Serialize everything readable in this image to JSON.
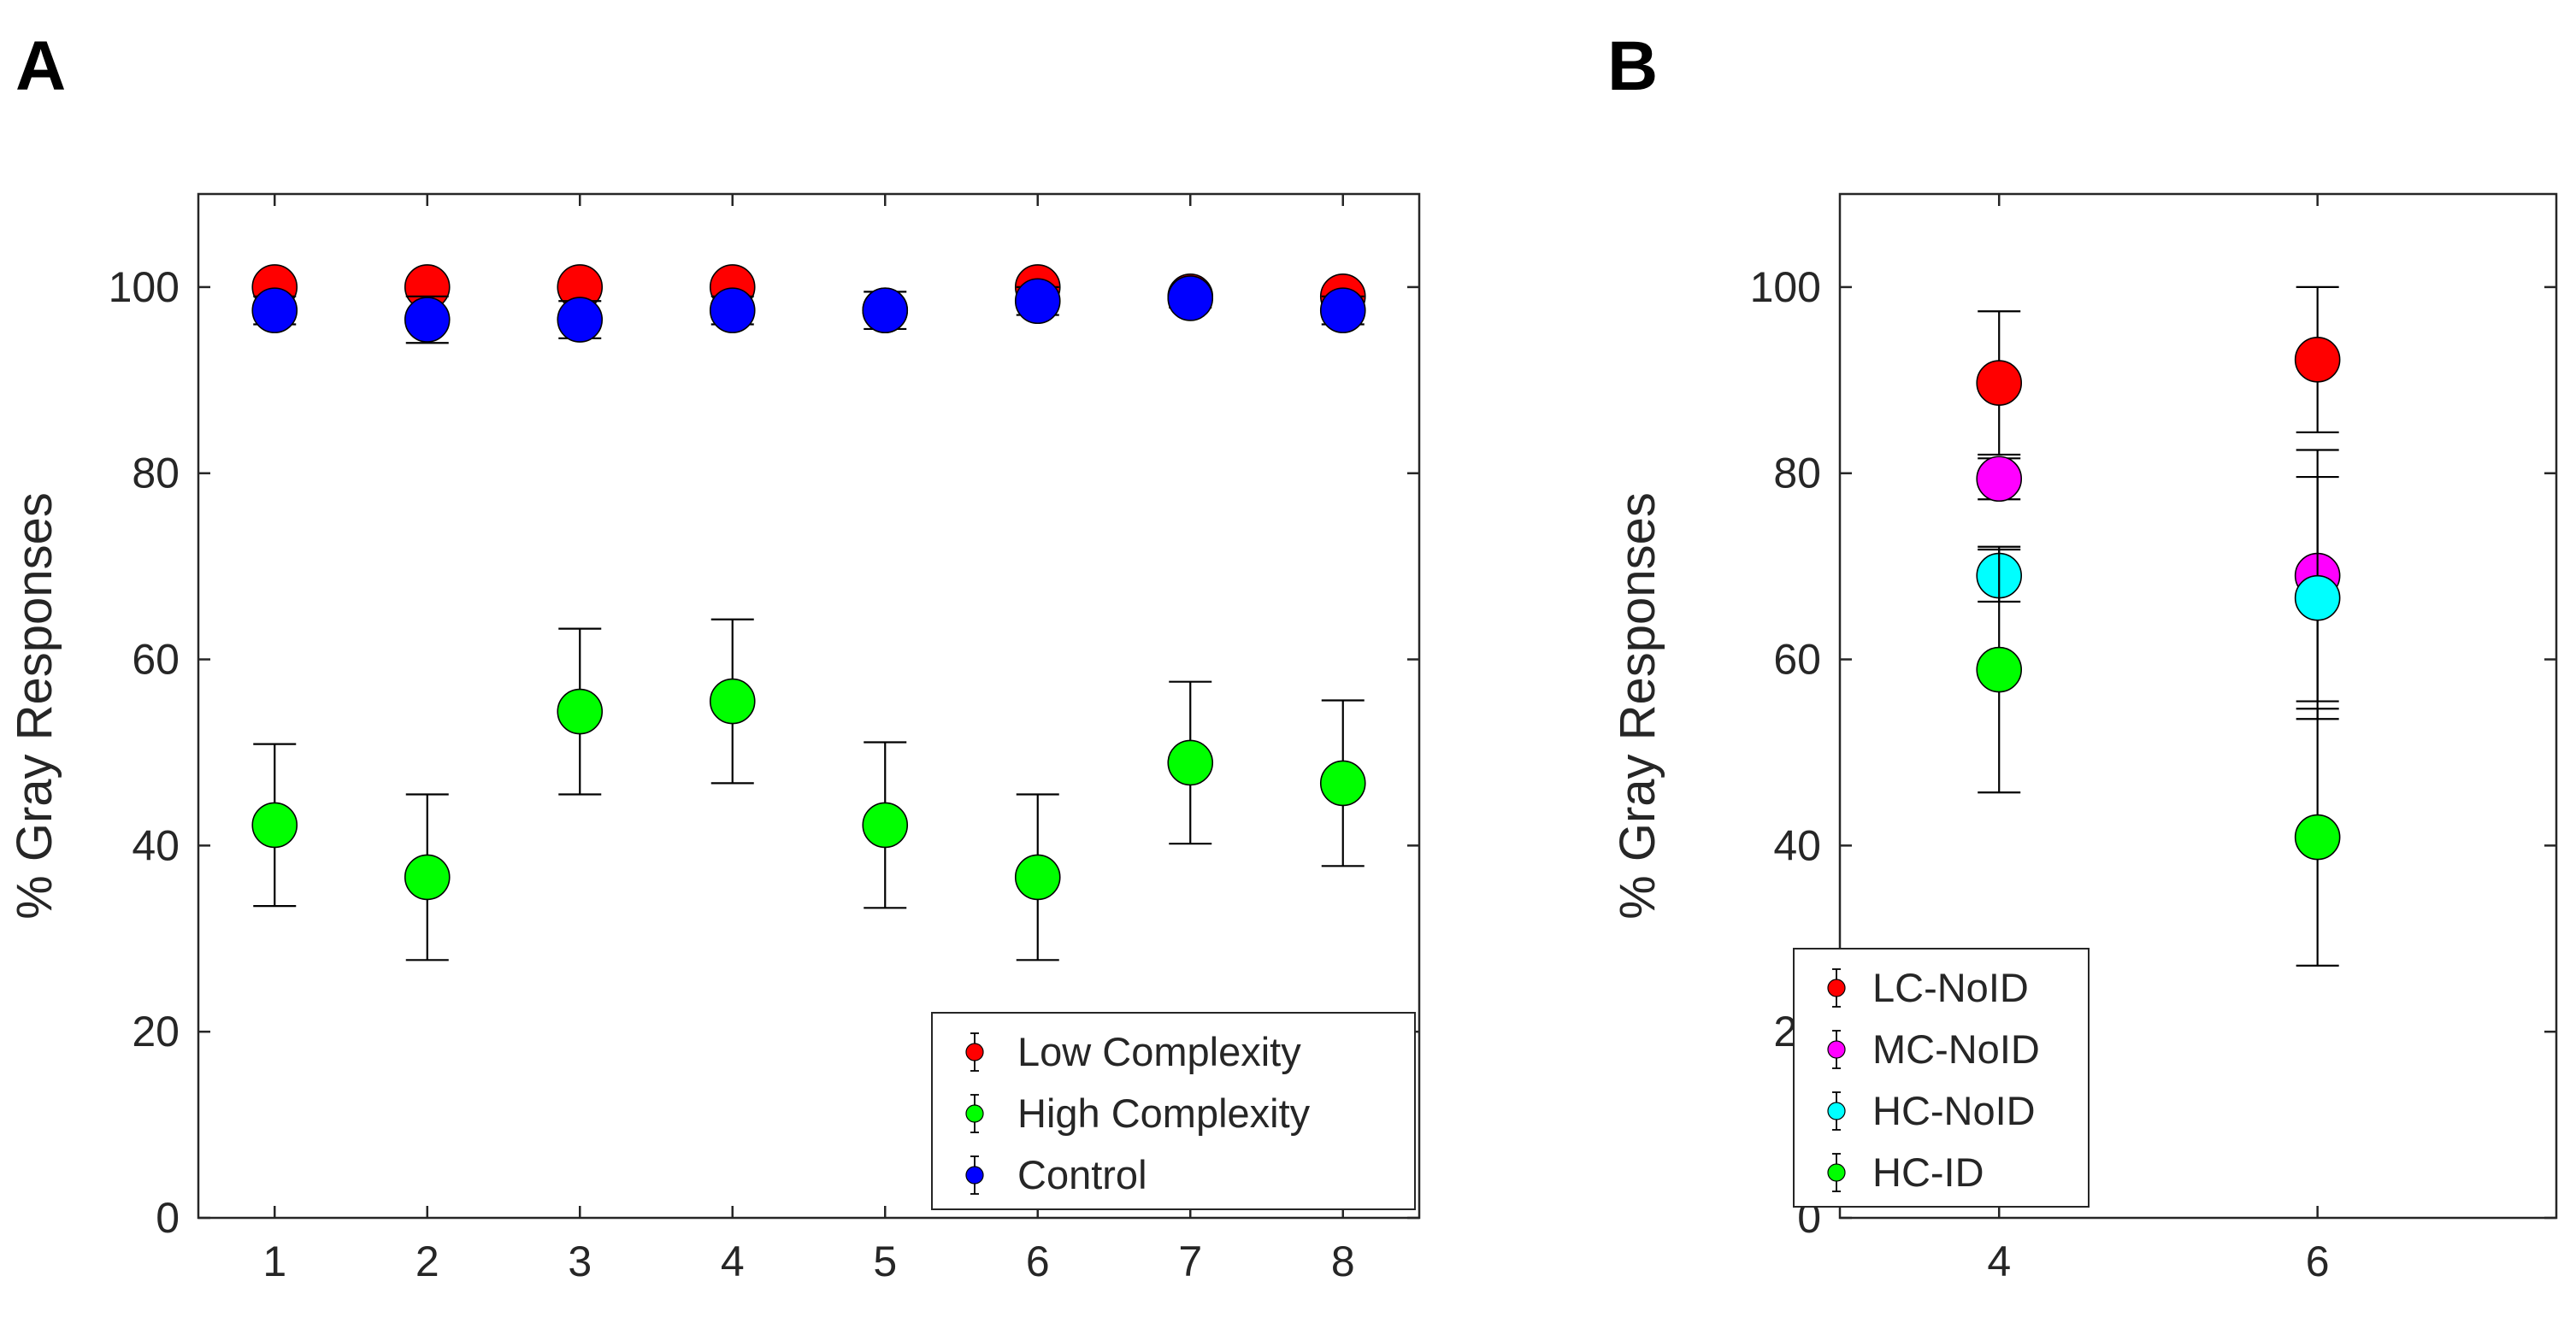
{
  "chart_data": [
    {
      "panel_label": "A",
      "type": "scatter",
      "title": "",
      "xlabel": "",
      "ylabel": "% Gray Responses",
      "xlim": [
        0.5,
        8.5
      ],
      "ylim": [
        0,
        110
      ],
      "x_ticks": [
        1,
        2,
        3,
        4,
        5,
        6,
        7,
        8
      ],
      "y_ticks": [
        0,
        20,
        40,
        60,
        80,
        100
      ],
      "grid": false,
      "legend_position": "bottom-right",
      "series": [
        {
          "name": "Low Complexity",
          "color": "#ff0000",
          "x": [
            1,
            2,
            3,
            4,
            5,
            6,
            7,
            8
          ],
          "y": [
            100,
            100,
            100,
            100,
            97.5,
            100,
            99,
            99
          ],
          "err": [
            0,
            0,
            0,
            0,
            0,
            0,
            0,
            0
          ]
        },
        {
          "name": "High Complexity",
          "color": "#00ff00",
          "x": [
            1,
            2,
            3,
            4,
            5,
            6,
            7,
            8
          ],
          "y": [
            42.2,
            36.6,
            54.4,
            55.5,
            42.2,
            36.6,
            48.9,
            46.7
          ],
          "err": [
            8.7,
            8.9,
            8.9,
            8.8,
            8.9,
            8.9,
            8.7,
            8.9
          ]
        },
        {
          "name": "Control",
          "color": "#0000ff",
          "x": [
            1,
            2,
            3,
            4,
            5,
            6,
            7,
            8
          ],
          "y": [
            97.5,
            96.5,
            96.5,
            97.5,
            97.5,
            98.5,
            98.8,
            97.5
          ],
          "err": [
            1.5,
            2.5,
            2.0,
            1.5,
            2.0,
            1.5,
            1.0,
            1.5
          ]
        }
      ]
    },
    {
      "panel_label": "B",
      "type": "scatter",
      "title": "",
      "xlabel": "",
      "ylabel": "% Gray Responses",
      "xlim": [
        3,
        7.5
      ],
      "ylim": [
        0,
        110
      ],
      "x_ticks": [
        4,
        6
      ],
      "y_ticks": [
        0,
        20,
        40,
        60,
        80,
        100
      ],
      "grid": false,
      "legend_position": "bottom-left",
      "series": [
        {
          "name": "LC-NoID",
          "color": "#ff0000",
          "x": [
            4,
            6
          ],
          "y": [
            89.7,
            92.2
          ],
          "err": [
            7.7,
            7.8
          ]
        },
        {
          "name": "MC-NoID",
          "color": "#ff00ff",
          "x": [
            4,
            6
          ],
          "y": [
            79.4,
            69.0
          ],
          "err": [
            2.2,
            13.5
          ]
        },
        {
          "name": "HC-NoID",
          "color": "#00ffff",
          "x": [
            4,
            6
          ],
          "y": [
            69.0,
            66.6
          ],
          "err": [
            2.8,
            13.0
          ]
        },
        {
          "name": "HC-ID",
          "color": "#00ff00",
          "x": [
            4,
            6
          ],
          "y": [
            58.9,
            40.9
          ],
          "err": [
            13.2,
            13.8
          ]
        }
      ]
    }
  ]
}
